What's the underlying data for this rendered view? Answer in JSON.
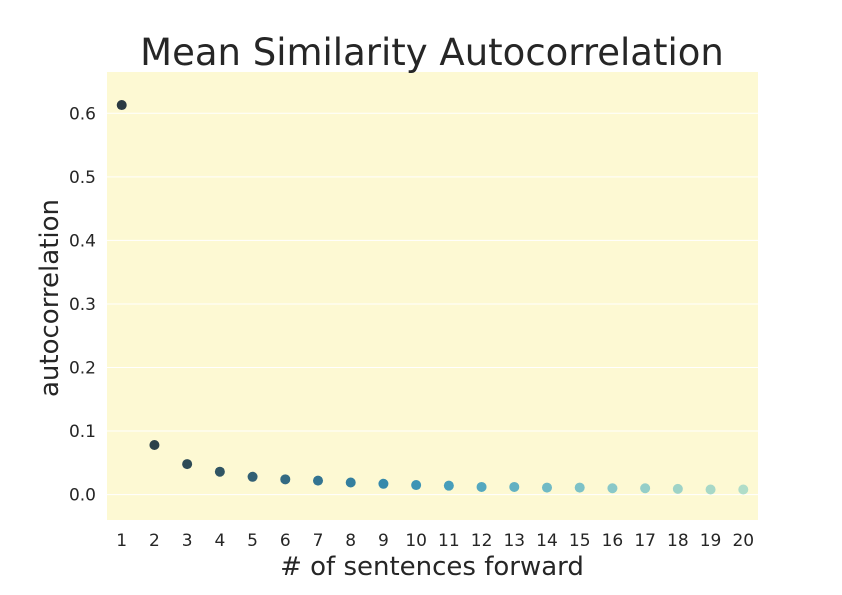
{
  "chart_data": {
    "type": "scatter",
    "title": "Mean Similarity Autocorrelation",
    "xlabel": "# of sentences forward",
    "ylabel": "autocorrelation",
    "x": [
      1,
      2,
      3,
      4,
      5,
      6,
      7,
      8,
      9,
      10,
      11,
      12,
      13,
      14,
      15,
      16,
      17,
      18,
      19,
      20
    ],
    "y": [
      0.613,
      0.078,
      0.048,
      0.036,
      0.028,
      0.024,
      0.022,
      0.019,
      0.017,
      0.015,
      0.014,
      0.012,
      0.012,
      0.011,
      0.011,
      0.01,
      0.01,
      0.009,
      0.008,
      0.008
    ],
    "xlim": [
      0.55,
      20.45
    ],
    "ylim": [
      -0.04,
      0.665
    ],
    "yticks": [
      0.0,
      0.1,
      0.2,
      0.3,
      0.4,
      0.5,
      0.6
    ],
    "ytick_labels": [
      "0.0",
      "0.1",
      "0.2",
      "0.3",
      "0.4",
      "0.5",
      "0.6"
    ],
    "xtick_labels": [
      "1",
      "2",
      "3",
      "4",
      "5",
      "6",
      "7",
      "8",
      "9",
      "10",
      "11",
      "12",
      "13",
      "14",
      "15",
      "16",
      "17",
      "18",
      "19",
      "20"
    ],
    "grid": true,
    "legend": "none",
    "background_color": "#fdf9d3",
    "point_colors": [
      "#2b3a42",
      "#2c424a",
      "#2e4b56",
      "#305563",
      "#326074",
      "#336a82",
      "#337491",
      "#347f9e",
      "#3689ab",
      "#3d94b5",
      "#479ebb",
      "#54a8bf",
      "#62b1c2",
      "#70bac5",
      "#7dc2c7",
      "#89c8c8",
      "#94cec8",
      "#9ed3c7",
      "#a7d8c7",
      "#b0ddc8"
    ]
  }
}
